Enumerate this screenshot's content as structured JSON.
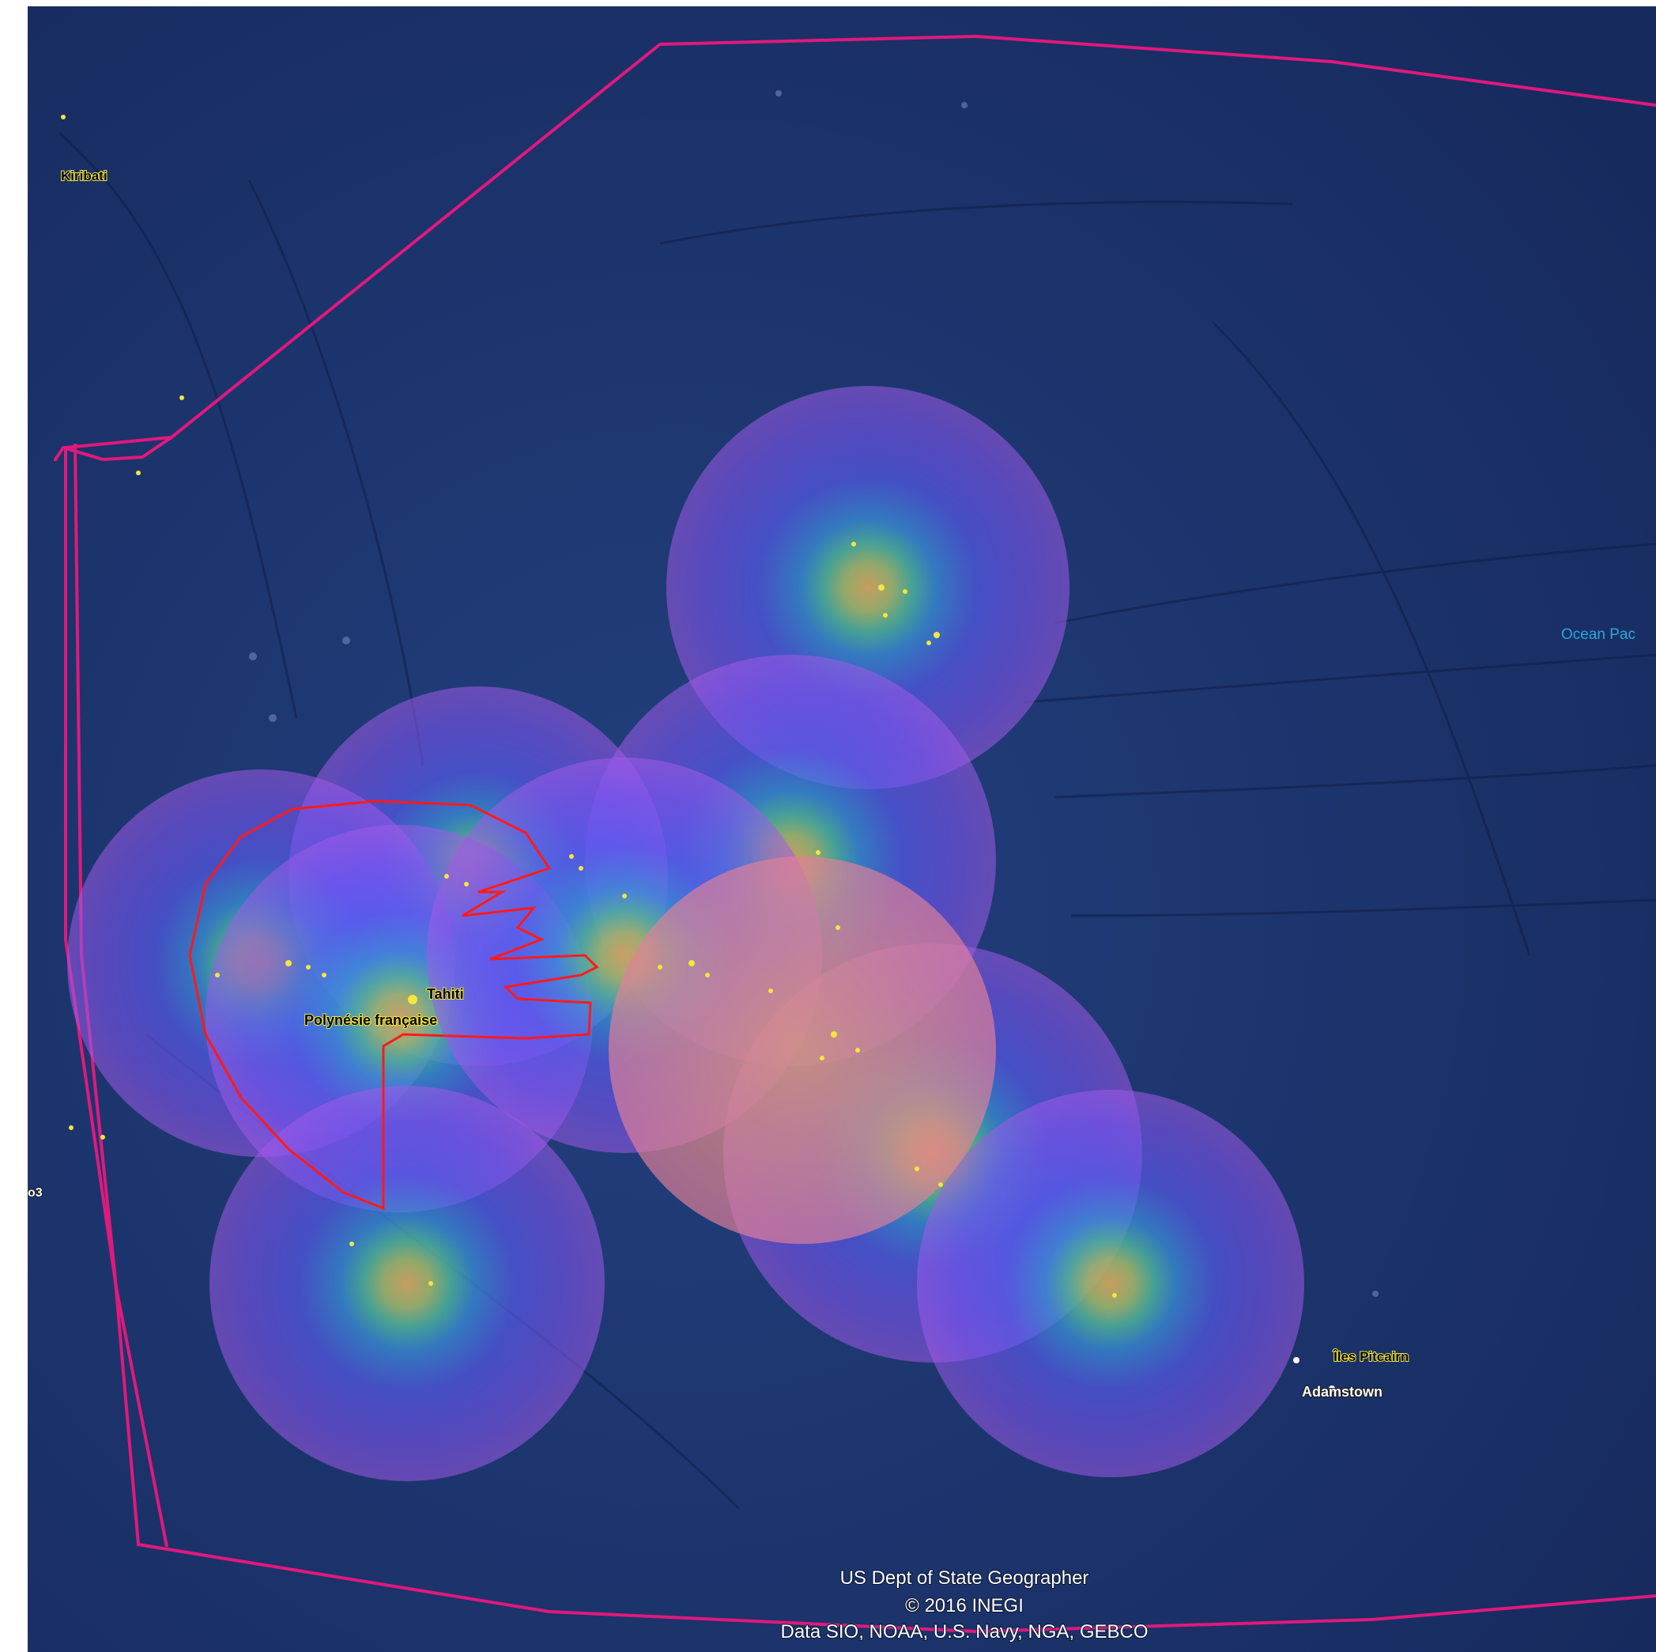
{
  "labels": {
    "kiribati": "Kiribati",
    "tahiti": "Tahiti",
    "polynesie": "Polynésie française",
    "pitcairn": "Îles Pitcairn",
    "adamstown": "Adamstown",
    "ocean": "Ocean Pac",
    "edge_left": "o3"
  },
  "attribution": {
    "line1": "US Dept of State Geographer",
    "line2": "© 2016 INEGI",
    "line3": "Data SIO, NOAA, U.S. Navy, NGA, GEBCO"
  },
  "colors": {
    "ocean": "#1a2f6b",
    "boundary": "#e0197d",
    "coverage_outline": "#ff1a1a",
    "coverage_fill": "#8a55ff",
    "center_warm": "#e0a85a",
    "island": "#f3e640"
  }
}
